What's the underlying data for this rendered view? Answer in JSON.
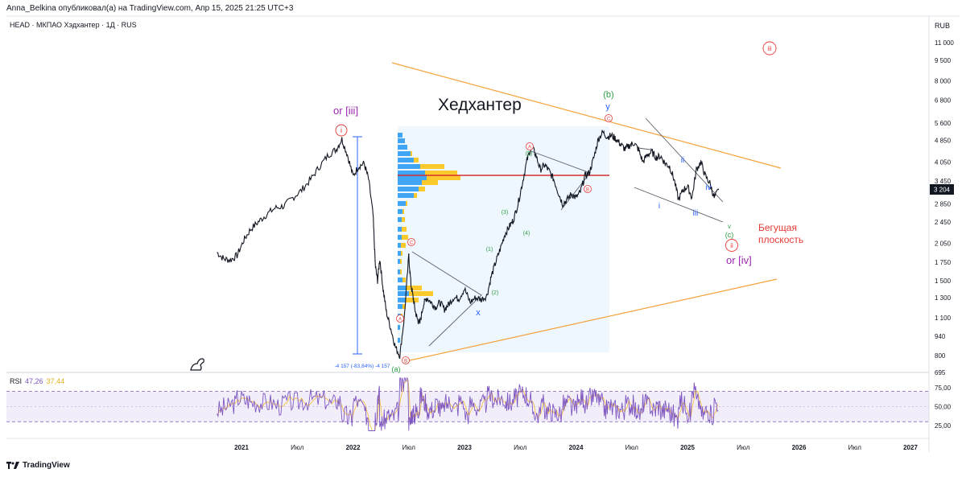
{
  "header": {
    "published": "Anna_Belkina опубликовал(а) на TradingView.com, Апр 15, 2025 21:25 UTC+3",
    "symbol": "HEAD · МКПАО Хэдхантер · 1Д · RUS",
    "currency": "RUB",
    "brand": "TradingView"
  },
  "colors": {
    "price": "#131722",
    "triangle": "#f5a33a",
    "poc": "#d32f2f",
    "volume_blue": "#2196f3",
    "volume_yellow": "#ffc107",
    "wave_red": "#e53935",
    "wave_green": "#2e9e44",
    "wave_blue": "#2962ff",
    "wave_purple": "#9c27b0",
    "rsi": "#7e57c2",
    "rsi_ma": "#f6c343"
  },
  "chart_data": [
    {
      "type": "line",
      "name": "price",
      "title": "Хедхантер",
      "yscale": "log",
      "ylim": [
        640,
        13500
      ],
      "y_ticks": [
        "11 000",
        "9 500",
        "8 000",
        "6 800",
        "5 600",
        "4 850",
        "4 050",
        "3 450",
        "2 850",
        "2 450",
        "2 050",
        "1 750",
        "1 500",
        "1 300",
        "1 100",
        "940",
        "800",
        "695"
      ],
      "y_tick_values": [
        11000,
        9500,
        8000,
        6800,
        5600,
        4850,
        4050,
        3450,
        2850,
        2450,
        2050,
        1750,
        1500,
        1300,
        1100,
        940,
        800,
        695
      ],
      "x_ticks": [
        "2021",
        "Июл",
        "2022",
        "Июл",
        "2023",
        "Июл",
        "2024",
        "Июл",
        "2025",
        "Июл",
        "2026",
        "Июл",
        "2027"
      ],
      "x_tick_values": [
        2021.0,
        2021.5,
        2022.0,
        2022.5,
        2023.0,
        2023.5,
        2024.0,
        2024.5,
        2025.0,
        2025.5,
        2026.0,
        2026.5,
        2027.0
      ],
      "last_price_label": "3 204",
      "x": [
        2020.78,
        2020.84,
        2020.9,
        2020.96,
        2021.02,
        2021.08,
        2021.15,
        2021.22,
        2021.3,
        2021.38,
        2021.46,
        2021.54,
        2021.62,
        2021.7,
        2021.78,
        2021.85,
        2021.9,
        2021.95,
        2022.0,
        2022.05,
        2022.1,
        2022.14,
        2022.18,
        2022.2,
        2022.22,
        2022.24,
        2022.27,
        2022.3,
        2022.34,
        2022.38,
        2022.42,
        2022.46,
        2022.5,
        2022.52,
        2022.54,
        2022.56,
        2022.58,
        2022.6,
        2022.63,
        2022.66,
        2022.7,
        2022.74,
        2022.78,
        2022.82,
        2022.86,
        2022.9,
        2022.95,
        2023.0,
        2023.05,
        2023.1,
        2023.15,
        2023.2,
        2023.24,
        2023.28,
        2023.32,
        2023.36,
        2023.4,
        2023.44,
        2023.48,
        2023.52,
        2023.56,
        2023.6,
        2023.64,
        2023.68,
        2023.72,
        2023.76,
        2023.8,
        2023.84,
        2023.88,
        2023.92,
        2023.96,
        2024.0,
        2024.04,
        2024.08,
        2024.12,
        2024.16,
        2024.2,
        2024.24,
        2024.28,
        2024.32,
        2024.36,
        2024.4,
        2024.44,
        2024.48,
        2024.52,
        2024.56,
        2024.6,
        2024.64,
        2024.68,
        2024.72,
        2024.76,
        2024.8,
        2024.84,
        2024.88,
        2024.92,
        2024.96,
        2025.0,
        2025.04,
        2025.08,
        2025.12,
        2025.16,
        2025.2,
        2025.24,
        2025.28
      ],
      "values": [
        1900,
        1800,
        1780,
        1850,
        2100,
        2300,
        2450,
        2600,
        2750,
        2800,
        3000,
        3200,
        3500,
        3900,
        4300,
        4500,
        4900,
        4300,
        3600,
        3900,
        4000,
        3500,
        2600,
        1700,
        1500,
        1800,
        1400,
        1150,
        1000,
        860,
        800,
        1100,
        1850,
        1450,
        1300,
        1150,
        1080,
        1050,
        1220,
        1300,
        1250,
        1200,
        1250,
        1180,
        1230,
        1300,
        1290,
        1400,
        1250,
        1300,
        1280,
        1320,
        1550,
        1750,
        1950,
        2200,
        2350,
        2500,
        2850,
        3400,
        4100,
        4600,
        4300,
        3800,
        3950,
        3750,
        3500,
        3150,
        2850,
        2950,
        3100,
        3000,
        3150,
        3600,
        3700,
        4200,
        4900,
        5200,
        5000,
        5050,
        4900,
        4700,
        4500,
        4650,
        4750,
        4500,
        4050,
        4300,
        4400,
        4200,
        4250,
        4000,
        3900,
        3500,
        2950,
        3200,
        3300,
        3000,
        3800,
        4050,
        3600,
        3400,
        3000,
        3204
      ]
    },
    {
      "type": "line",
      "name": "RSI",
      "title": "RSI",
      "values_label_rsi": "47,26",
      "values_label_ma": "37,44",
      "ylim": [
        10,
        92
      ],
      "y_ticks": [
        "75,00",
        "50,00",
        "25,00"
      ],
      "y_tick_values": [
        75,
        50,
        25
      ],
      "bands": [
        70,
        50,
        30
      ]
    }
  ],
  "annotations": {
    "title": "Хедхантер",
    "or_iii": "or [iii]",
    "or_iv": "or [iv]",
    "runner": "Бегущая плоскость",
    "runner_line1": "Бегущая",
    "runner_line2": "плоскость",
    "measure": "-4 157 (-83,84%) -4 157",
    "wave_i": "i",
    "wave_ii": "ii",
    "wave_iii_top": "iii",
    "wave_A": "A",
    "wave_B": "B",
    "wave_C": "C",
    "wave_a": "(a)",
    "wave_b": "(b)",
    "wave_c": "(c)",
    "wave_y": "y",
    "wave_x": "x",
    "wave_1": "(1)",
    "wave_2": "(2)",
    "wave_3": "(3)",
    "wave_4": "(4)",
    "wave_5": "(5)",
    "sub_i": "i",
    "sub_ii": "ii",
    "sub_iii": "iii",
    "sub_iv": "iv",
    "sub_v": "v",
    "ii_circle": "ii"
  }
}
